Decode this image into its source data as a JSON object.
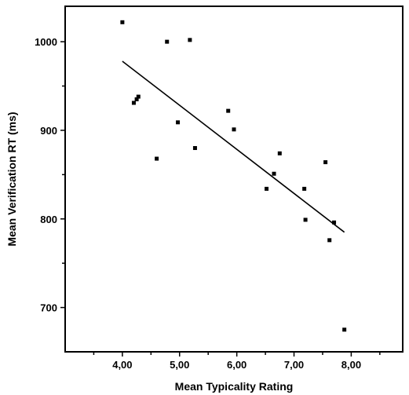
{
  "chart_data": {
    "type": "scatter",
    "title": "",
    "xlabel": "Mean Typicality Rating",
    "ylabel": "Mean Verification RT (ms)",
    "xlim": [
      3.0,
      8.9
    ],
    "ylim": [
      650,
      1040
    ],
    "x_ticks": [
      4,
      5,
      6,
      7,
      8
    ],
    "x_tick_labels": [
      "4,00",
      "5,00",
      "6,00",
      "7,00",
      "8,00"
    ],
    "x_minor_ticks": [
      3.5,
      4.5,
      5.5,
      6.5,
      7.5,
      8.5
    ],
    "y_ticks": [
      700,
      800,
      900,
      1000
    ],
    "y_tick_labels": [
      "700",
      "800",
      "900",
      "1000"
    ],
    "y_minor_ticks": [
      750,
      850,
      950
    ],
    "grid": false,
    "legend": "none",
    "series": [
      {
        "points": [
          [
            4.0,
            1022
          ],
          [
            4.2,
            931
          ],
          [
            4.25,
            935
          ],
          [
            4.28,
            938
          ],
          [
            4.6,
            868
          ],
          [
            4.78,
            1000
          ],
          [
            4.97,
            909
          ],
          [
            5.18,
            1002
          ],
          [
            5.27,
            880
          ],
          [
            5.85,
            922
          ],
          [
            5.95,
            901
          ],
          [
            6.52,
            834
          ],
          [
            6.65,
            851
          ],
          [
            6.75,
            874
          ],
          [
            7.18,
            834
          ],
          [
            7.2,
            799
          ],
          [
            7.55,
            864
          ],
          [
            7.62,
            776
          ],
          [
            7.7,
            796
          ],
          [
            7.88,
            675
          ]
        ]
      }
    ],
    "regression_line": {
      "x": [
        4.0,
        7.88
      ],
      "y": [
        978,
        785
      ]
    }
  }
}
